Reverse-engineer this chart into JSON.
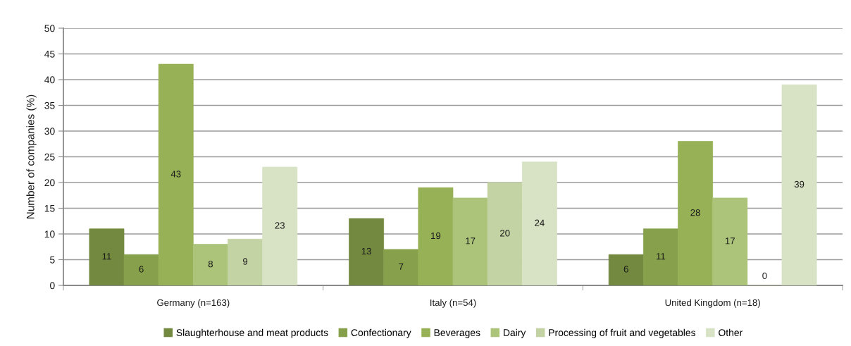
{
  "chart_data": {
    "type": "bar",
    "ylabel": "Number of companies (%)",
    "categories": [
      "Germany (n=163)",
      "Italy (n=54)",
      "United Kingdom (n=18)"
    ],
    "series": [
      {
        "name": "Slaughterhouse and meat products",
        "color": "#73893f",
        "values": [
          11,
          13,
          6
        ]
      },
      {
        "name": "Confectionary",
        "color": "#86a04c",
        "values": [
          6,
          7,
          11
        ]
      },
      {
        "name": "Beverages",
        "color": "#97b156",
        "values": [
          43,
          19,
          28
        ]
      },
      {
        "name": "Dairy",
        "color": "#abc47a",
        "values": [
          8,
          17,
          17
        ]
      },
      {
        "name": "Processing of fruit and vegetables",
        "color": "#c3d3a3",
        "values": [
          9,
          20,
          0
        ]
      },
      {
        "name": "Other",
        "color": "#d8e2c5",
        "values": [
          23,
          24,
          39
        ]
      }
    ],
    "ylim": [
      0,
      50
    ],
    "yticks": [
      0,
      5,
      10,
      15,
      20,
      25,
      30,
      35,
      40,
      45,
      50
    ],
    "grid": "y",
    "legend": "bottom",
    "data_labels": true
  }
}
